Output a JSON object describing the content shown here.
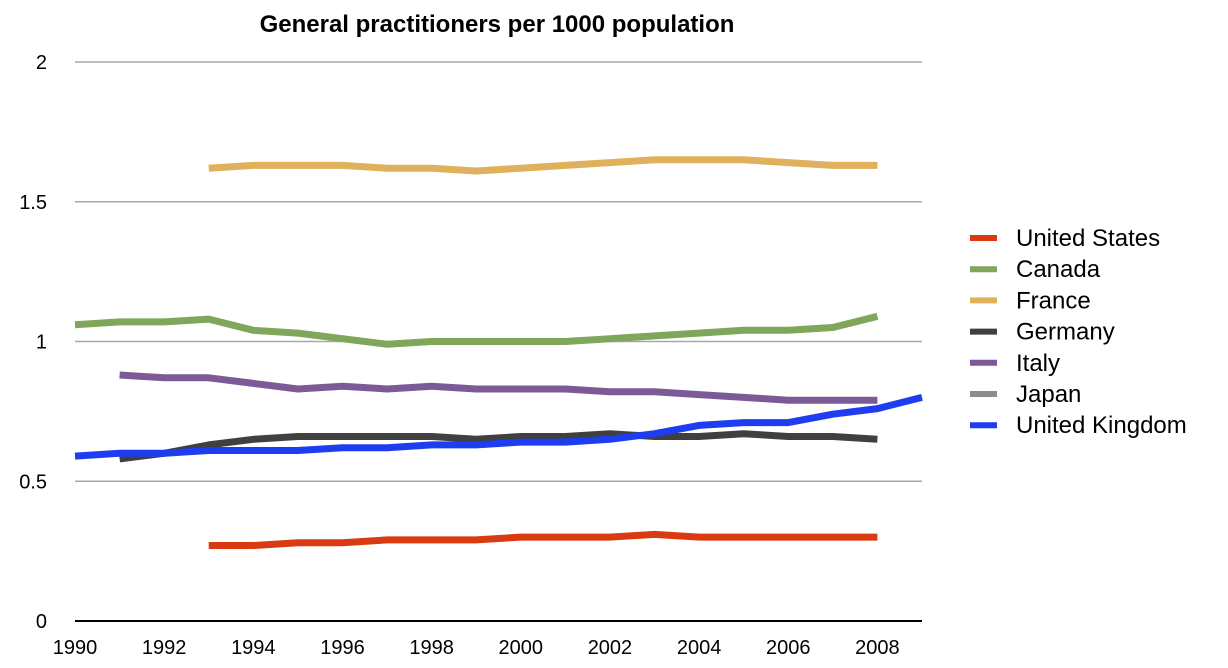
{
  "chart_data": {
    "type": "line",
    "title": "General practitioners per 1000 population",
    "xlabel": "",
    "ylabel": "",
    "xlim": [
      1990,
      2009
    ],
    "ylim": [
      0,
      2
    ],
    "x_ticks": [
      "1990",
      "1992",
      "1994",
      "1996",
      "1998",
      "2000",
      "2002",
      "2004",
      "2006",
      "2008"
    ],
    "y_ticks": [
      "0",
      "0.5",
      "1",
      "1.5",
      "2"
    ],
    "grid": true,
    "legend_position": "right",
    "series": [
      {
        "name": "United States",
        "color": "#d93a12",
        "x": [
          1993,
          1994,
          1995,
          1996,
          1997,
          1998,
          1999,
          2000,
          2001,
          2002,
          2003,
          2004,
          2005,
          2006,
          2007,
          2008
        ],
        "y": [
          0.27,
          0.27,
          0.28,
          0.28,
          0.29,
          0.29,
          0.29,
          0.3,
          0.3,
          0.3,
          0.31,
          0.3,
          0.3,
          0.3,
          0.3,
          0.3
        ]
      },
      {
        "name": "Canada",
        "color": "#7fa65a",
        "x": [
          1990,
          1991,
          1992,
          1993,
          1994,
          1995,
          1996,
          1997,
          1998,
          1999,
          2000,
          2001,
          2002,
          2003,
          2004,
          2005,
          2006,
          2007,
          2008
        ],
        "y": [
          1.06,
          1.07,
          1.07,
          1.08,
          1.04,
          1.03,
          1.01,
          0.99,
          1.0,
          1.0,
          1.0,
          1.0,
          1.01,
          1.02,
          1.03,
          1.04,
          1.04,
          1.05,
          1.09
        ]
      },
      {
        "name": "France",
        "color": "#e0b05c",
        "x": [
          1993,
          1994,
          1995,
          1996,
          1997,
          1998,
          1999,
          2000,
          2001,
          2002,
          2003,
          2004,
          2005,
          2006,
          2007,
          2008
        ],
        "y": [
          1.62,
          1.63,
          1.63,
          1.63,
          1.62,
          1.62,
          1.61,
          1.62,
          1.63,
          1.64,
          1.65,
          1.65,
          1.65,
          1.64,
          1.63,
          1.63
        ]
      },
      {
        "name": "Germany",
        "color": "#404040",
        "x": [
          1991,
          1992,
          1993,
          1994,
          1995,
          1996,
          1997,
          1998,
          1999,
          2000,
          2001,
          2002,
          2003,
          2004,
          2005,
          2006,
          2007,
          2008
        ],
        "y": [
          0.58,
          0.6,
          0.63,
          0.65,
          0.66,
          0.66,
          0.66,
          0.66,
          0.65,
          0.66,
          0.66,
          0.67,
          0.66,
          0.66,
          0.67,
          0.66,
          0.66,
          0.65
        ]
      },
      {
        "name": "Italy",
        "color": "#7b5a96",
        "x": [
          1991,
          1992,
          1993,
          1994,
          1995,
          1996,
          1997,
          1998,
          1999,
          2000,
          2001,
          2002,
          2003,
          2004,
          2005,
          2006,
          2007,
          2008
        ],
        "y": [
          0.88,
          0.87,
          0.87,
          0.85,
          0.83,
          0.84,
          0.83,
          0.84,
          0.83,
          0.83,
          0.83,
          0.82,
          0.82,
          0.81,
          0.8,
          0.79,
          0.79,
          0.79
        ]
      },
      {
        "name": "Japan",
        "color": "#8c8c8c",
        "x": [],
        "y": []
      },
      {
        "name": "United Kingdom",
        "color": "#1e3cf0",
        "x": [
          1990,
          1991,
          1992,
          1993,
          1994,
          1995,
          1996,
          1997,
          1998,
          1999,
          2000,
          2001,
          2002,
          2003,
          2004,
          2005,
          2006,
          2007,
          2008,
          2009
        ],
        "y": [
          0.59,
          0.6,
          0.6,
          0.61,
          0.61,
          0.61,
          0.62,
          0.62,
          0.63,
          0.63,
          0.64,
          0.64,
          0.65,
          0.67,
          0.7,
          0.71,
          0.71,
          0.74,
          0.76,
          0.8
        ]
      }
    ]
  }
}
